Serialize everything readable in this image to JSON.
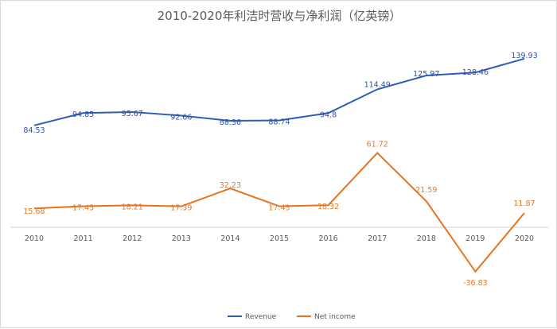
{
  "chart_data": {
    "type": "line",
    "title": "2010-2020年利洁时营收与净利润（亿英镑）",
    "xlabel": "",
    "ylabel": "",
    "categories": [
      "2010",
      "2011",
      "2012",
      "2013",
      "2014",
      "2015",
      "2016",
      "2017",
      "2018",
      "2019",
      "2020"
    ],
    "series": [
      {
        "name": "Revenue",
        "color": "#2f5cb8",
        "label_color": "#2f52a8",
        "values": [
          84.53,
          94.85,
          95.67,
          92.66,
          88.36,
          88.74,
          94.8,
          114.49,
          125.97,
          128.46,
          139.93
        ]
      },
      {
        "name": "Net income",
        "color": "#e8731e",
        "label_color": "#e07a2c",
        "values": [
          15.68,
          17.45,
          18.21,
          17.39,
          32.23,
          17.43,
          18.32,
          61.72,
          21.59,
          -36.83,
          11.87
        ]
      }
    ],
    "ylim": [
      -62.7,
      161.6
    ],
    "grid": false,
    "legend": "bottom"
  }
}
